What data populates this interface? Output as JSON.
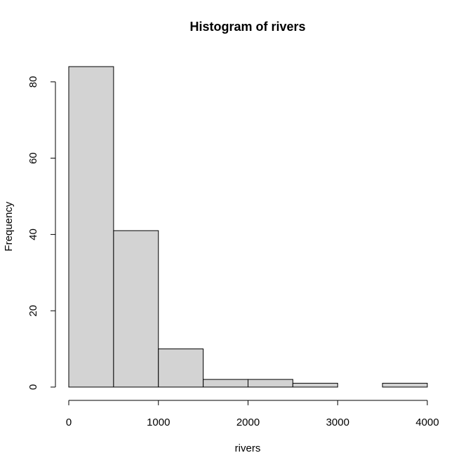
{
  "chart_data": {
    "type": "bar",
    "title": "Histogram of rivers",
    "xlabel": "rivers",
    "ylabel": "Frequency",
    "bins": [
      {
        "start": 0,
        "end": 500,
        "count": 84
      },
      {
        "start": 500,
        "end": 1000,
        "count": 41
      },
      {
        "start": 1000,
        "end": 1500,
        "count": 10
      },
      {
        "start": 1500,
        "end": 2000,
        "count": 2
      },
      {
        "start": 2000,
        "end": 2500,
        "count": 2
      },
      {
        "start": 2500,
        "end": 3000,
        "count": 1
      },
      {
        "start": 3000,
        "end": 3500,
        "count": 0
      },
      {
        "start": 3500,
        "end": 4000,
        "count": 1
      }
    ],
    "xlim": [
      0,
      4000
    ],
    "ylim": [
      0,
      84
    ],
    "xticks": [
      0,
      1000,
      2000,
      3000,
      4000
    ],
    "xtick_labels": [
      "0",
      "1000",
      "2000",
      "3000",
      "4000"
    ],
    "yticks": [
      0,
      20,
      40,
      60,
      80
    ],
    "ytick_labels": [
      "0",
      "20",
      "40",
      "60",
      "80"
    ],
    "grid": false,
    "bar_fill": "#d3d3d3",
    "bar_stroke": "#000000"
  }
}
